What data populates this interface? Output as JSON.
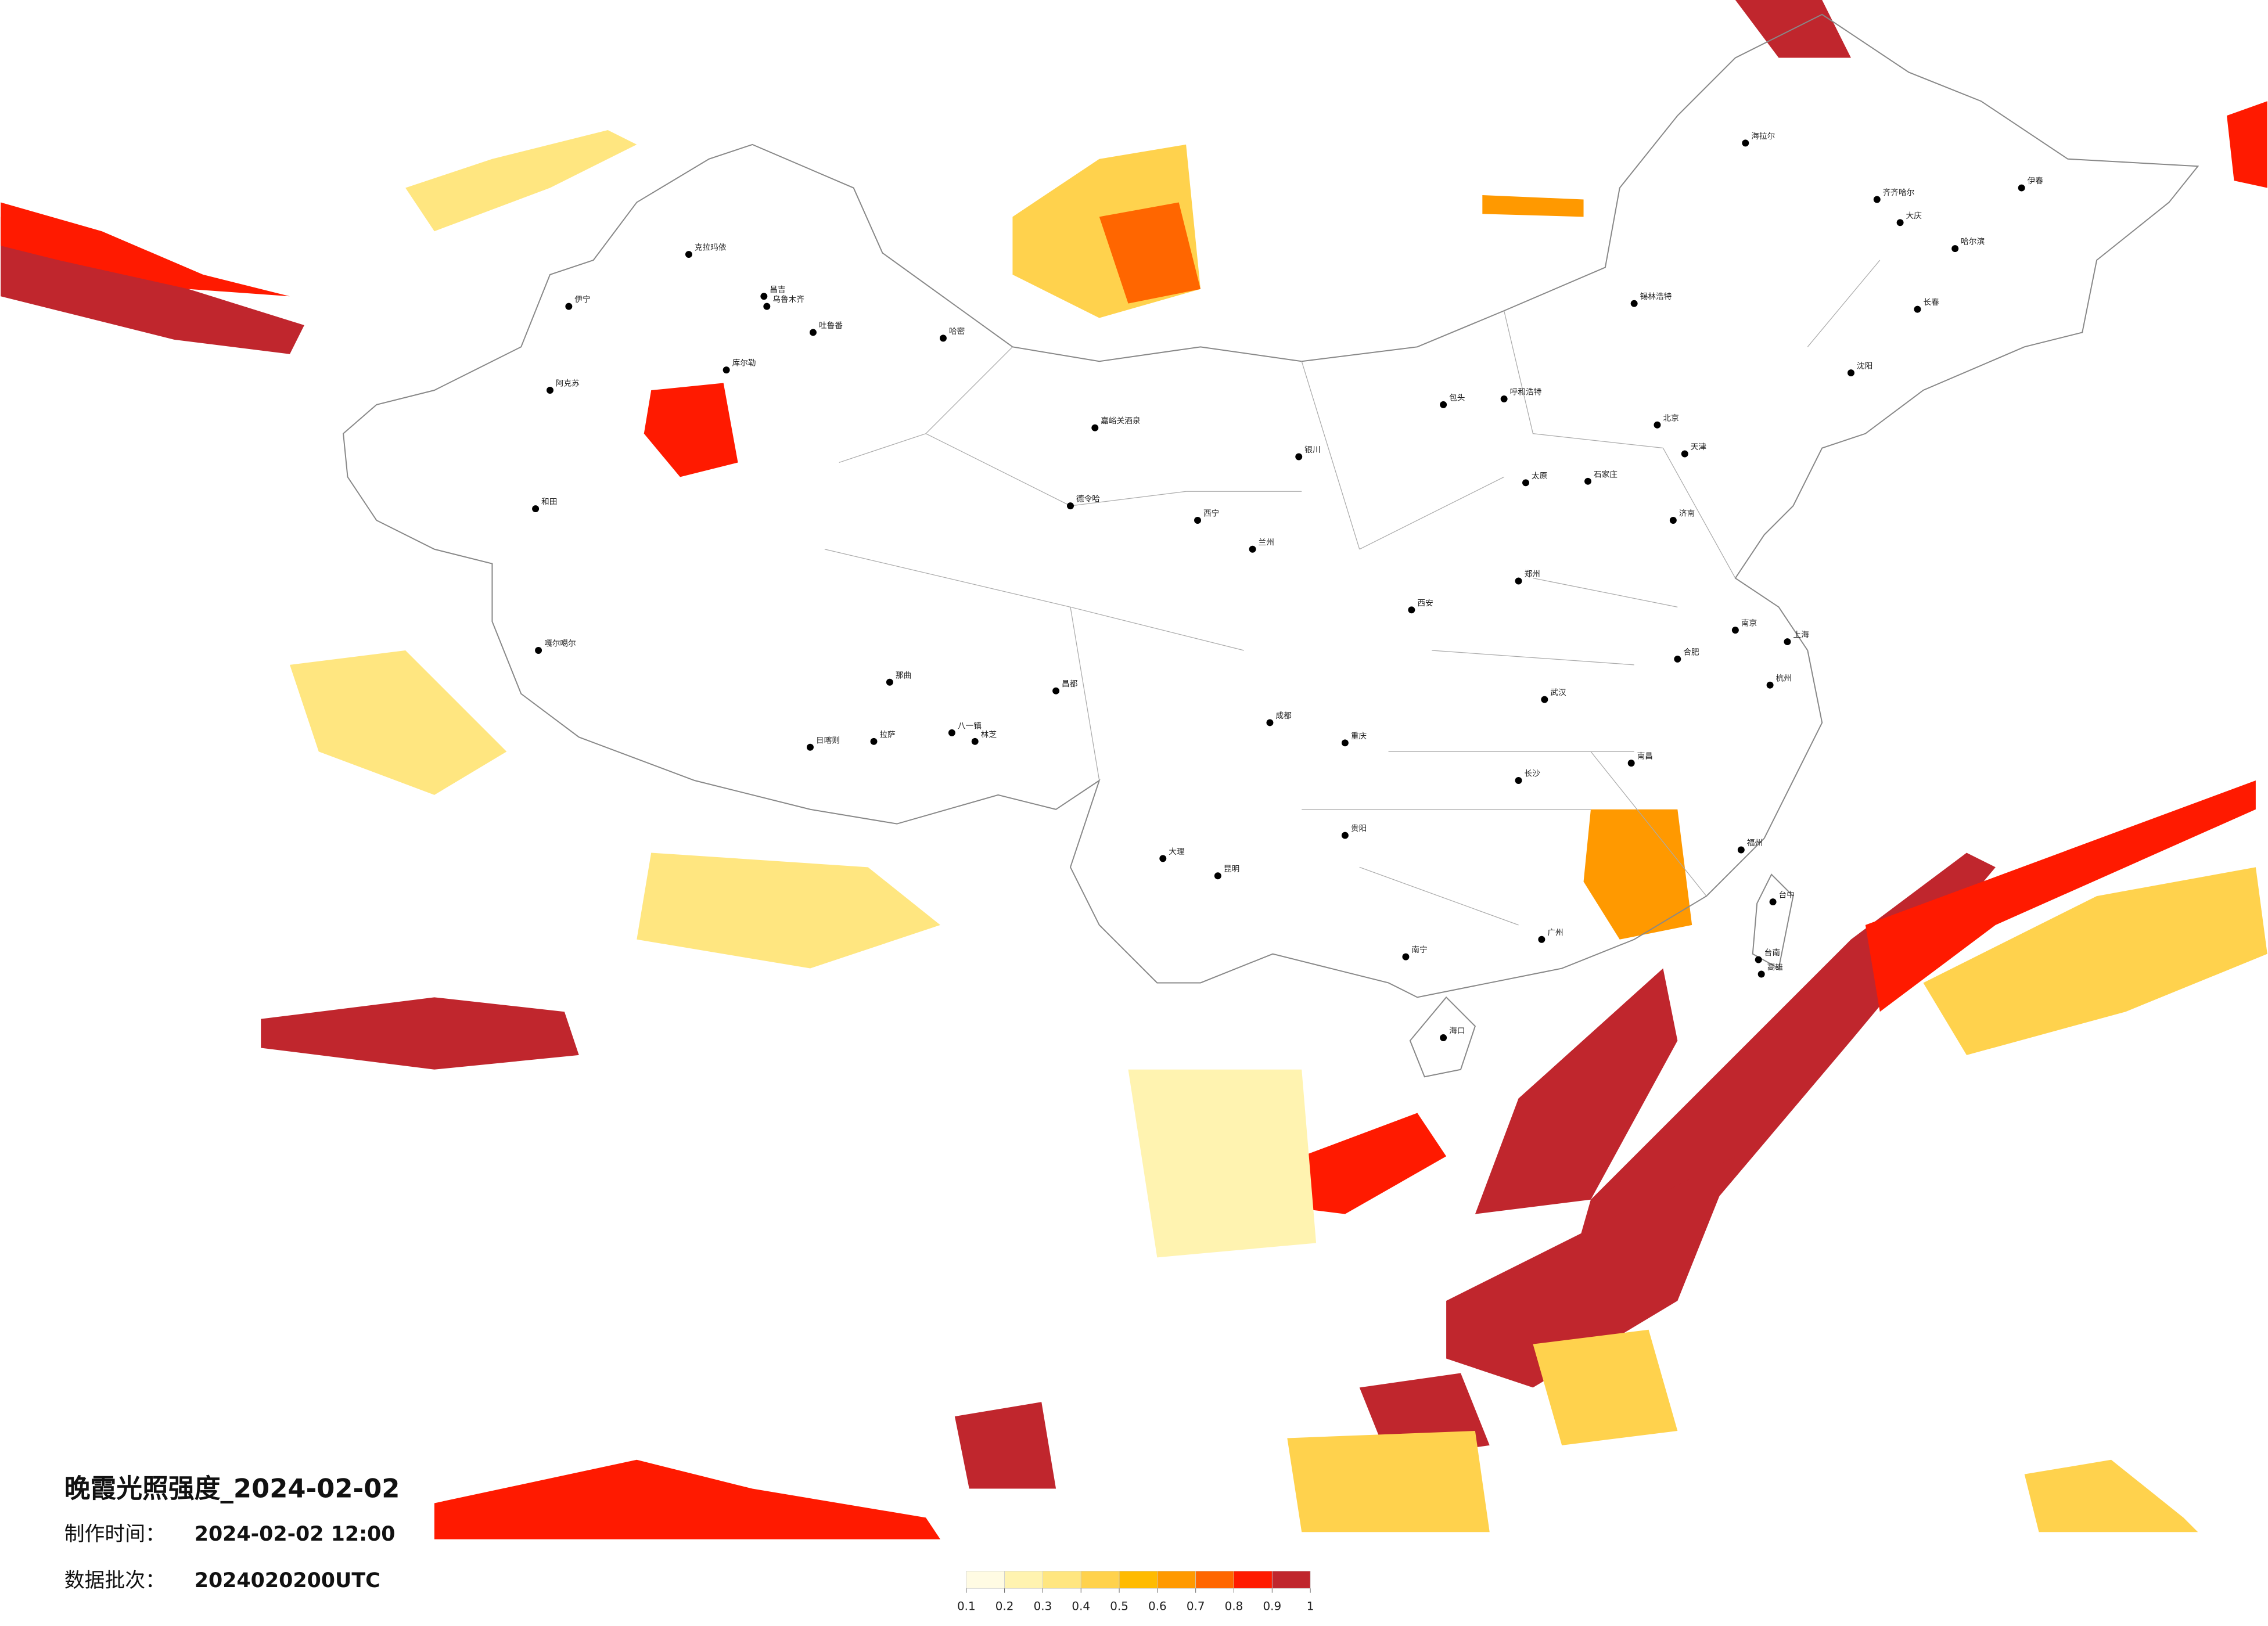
{
  "title": "晚霞光照强度_2024-02-02",
  "info": [
    {
      "label": "制作时间：",
      "value": "2024-02-02 12:00"
    },
    {
      "label": "数据批次：",
      "value": "2024020200UTC"
    }
  ],
  "legend": {
    "colors": [
      "#fffbe3",
      "#fff3b0",
      "#ffe680",
      "#ffd24d",
      "#ffbb00",
      "#ff9900",
      "#ff6600",
      "#ff1a00",
      "#c0262d"
    ],
    "ticks": [
      0.1,
      0.2,
      0.3,
      0.4,
      0.5,
      0.6,
      0.7,
      0.8,
      0.9,
      1
    ]
  },
  "cities": [
    "克拉玛依",
    "伊宁",
    "昌吉",
    "乌鲁木齐",
    "吐鲁番",
    "哈密",
    "阿克苏",
    "库尔勒",
    "和田",
    "嘎尔噶尔",
    "日喀则",
    "拉萨",
    "八一镇",
    "林芝",
    "那曲",
    "昌都",
    "嘉峪关酒泉",
    "德令哈",
    "西宁",
    "兰州",
    "银川",
    "呼和浩特",
    "包头",
    "北京",
    "天津",
    "石家庄",
    "太原",
    "沈阳",
    "长春",
    "哈尔滨",
    "齐齐哈尔",
    "海拉尔",
    "伊春",
    "大庆",
    "锡林浩特",
    "郑州",
    "济南",
    "南京",
    "上海",
    "杭州",
    "合肥",
    "武汉",
    "长沙",
    "南昌",
    "福州",
    "台中",
    "台南",
    "高雄",
    "广州",
    "南宁",
    "海口",
    "贵阳",
    "昆明",
    "成都",
    "重庆",
    "西安",
    "大理"
  ]
}
